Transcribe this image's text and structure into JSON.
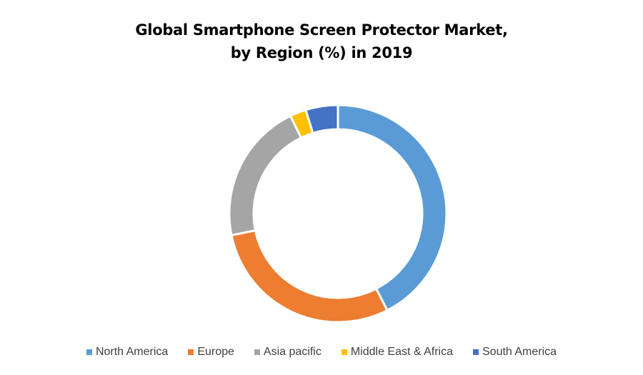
{
  "chart_data": {
    "type": "pie",
    "variant": "donut",
    "title": "Global Smartphone Screen Protector Market, by Region (%) in 2019",
    "title_lines": [
      "Global Smartphone Screen Protector Market,",
      "by Region (%) in 2019"
    ],
    "categories": [
      "North America",
      "Europe",
      "Asia pacific",
      "Middle East & Africa",
      "South America"
    ],
    "values": [
      42.5,
      29.3,
      21.0,
      2.4,
      4.8
    ],
    "colors": [
      "#5B9BD5",
      "#ED7D31",
      "#A5A5A5",
      "#FFC000",
      "#4472C4"
    ],
    "legend_position": "bottom",
    "start_angle": "top, clockwise"
  }
}
